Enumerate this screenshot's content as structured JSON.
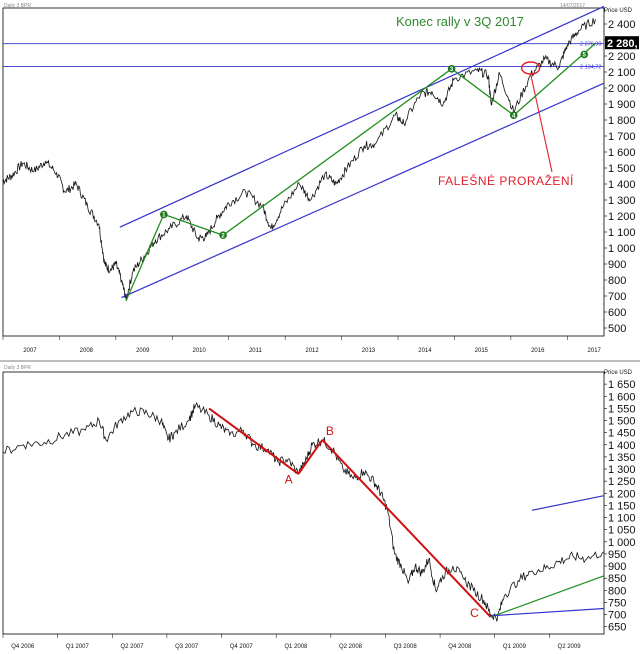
{
  "colors": {
    "price": "#111111",
    "channel": "#3333cc",
    "wave": "#1f8f1f",
    "wave_marker": "#1e7a1e",
    "abc": "#d01010",
    "annot_green": "#2e8b2e",
    "annot_red": "#e0202a",
    "axis_box": "#000000"
  },
  "top_header": {
    "left": "Daily 3 BPR",
    "right": "14/07/2017"
  },
  "bottom_header": {
    "left": "Daily 3 BPR",
    "right": ""
  },
  "chart_data": [
    {
      "type": "line",
      "axis_unit": "Price USD",
      "last_price": "2 280,",
      "ylim": [
        450,
        2500
      ],
      "y_ticks": [
        500,
        600,
        700,
        800,
        900,
        1000,
        1100,
        1200,
        1300,
        1400,
        1500,
        1600,
        1700,
        1800,
        1900,
        2000,
        2100,
        2200,
        2300,
        2400
      ],
      "y_tick_labels": [
        "500",
        "600",
        "700",
        "800",
        "900",
        "1 000",
        "1 100",
        "1 200",
        "1 300",
        "1 400",
        "1 500",
        "1 600",
        "1 700",
        "1 800",
        "1 900",
        "2 000",
        "2 100",
        "2 200",
        "2 300",
        "2 400"
      ],
      "x_years": [
        "2007",
        "2008",
        "2009",
        "2010",
        "2011",
        "2012",
        "2013",
        "2014",
        "2015",
        "2016",
        "2017"
      ],
      "annotations": {
        "title": "Konec rally v 3Q 2017",
        "false_break": "FALEŠNÉ PRORAŽENÍ",
        "hline_upper": "2 276,90",
        "hline_lower": "2 134,72",
        "waves": [
          "1",
          "2",
          "3",
          "4",
          "5"
        ]
      },
      "hlines": [
        2276.9,
        2134.72
      ],
      "series": [
        {
          "values": [
            [
              2007.0,
              1420
            ],
            [
              2007.15,
              1450
            ],
            [
              2007.35,
              1530
            ],
            [
              2007.55,
              1480
            ],
            [
              2007.75,
              1540
            ],
            [
              2007.95,
              1470
            ],
            [
              2008.1,
              1350
            ],
            [
              2008.3,
              1400
            ],
            [
              2008.5,
              1260
            ],
            [
              2008.7,
              1150
            ],
            [
              2008.8,
              900
            ],
            [
              2008.9,
              860
            ],
            [
              2009.0,
              900
            ],
            [
              2009.1,
              800
            ],
            [
              2009.18,
              680
            ],
            [
              2009.3,
              850
            ],
            [
              2009.5,
              950
            ],
            [
              2009.7,
              1050
            ],
            [
              2009.95,
              1120
            ],
            [
              2010.25,
              1200
            ],
            [
              2010.45,
              1060
            ],
            [
              2010.6,
              1070
            ],
            [
              2010.8,
              1190
            ],
            [
              2011.0,
              1280
            ],
            [
              2011.3,
              1350
            ],
            [
              2011.6,
              1260
            ],
            [
              2011.75,
              1120
            ],
            [
              2011.95,
              1250
            ],
            [
              2012.25,
              1400
            ],
            [
              2012.45,
              1300
            ],
            [
              2012.7,
              1460
            ],
            [
              2012.9,
              1400
            ],
            [
              2013.1,
              1500
            ],
            [
              2013.4,
              1640
            ],
            [
              2013.6,
              1650
            ],
            [
              2013.95,
              1830
            ],
            [
              2014.1,
              1780
            ],
            [
              2014.4,
              1960
            ],
            [
              2014.6,
              1980
            ],
            [
              2014.8,
              1900
            ],
            [
              2015.0,
              2060
            ],
            [
              2015.4,
              2110
            ],
            [
              2015.6,
              2080
            ],
            [
              2015.65,
              1900
            ],
            [
              2015.8,
              2090
            ],
            [
              2016.05,
              1850
            ],
            [
              2016.35,
              2080
            ],
            [
              2016.6,
              2180
            ],
            [
              2016.85,
              2130
            ],
            [
              2017.0,
              2270
            ],
            [
              2017.2,
              2360
            ],
            [
              2017.5,
              2430
            ]
          ]
        }
      ],
      "channel_lines": [
        {
          "from": [
            2009.07,
            1130
          ],
          "to": [
            2017.65,
            2510
          ]
        },
        {
          "from": [
            2009.1,
            690
          ],
          "to": [
            2017.65,
            2030
          ]
        }
      ],
      "wave_lines": [
        {
          "from": [
            2009.18,
            670
          ],
          "to": [
            2009.85,
            1210
          ]
        },
        {
          "from": [
            2009.85,
            1210
          ],
          "to": [
            2010.9,
            1080
          ]
        },
        {
          "from": [
            2010.9,
            1080
          ],
          "to": [
            2014.95,
            2120
          ]
        },
        {
          "from": [
            2014.95,
            2120
          ],
          "to": [
            2016.05,
            1830
          ]
        },
        {
          "from": [
            2016.05,
            1830
          ],
          "to": [
            2017.5,
            2280
          ]
        }
      ],
      "wave_points": [
        [
          2009.85,
          1210
        ],
        [
          2010.9,
          1080
        ],
        [
          2014.95,
          2120
        ],
        [
          2016.05,
          1830
        ],
        [
          2017.3,
          2210
        ]
      ]
    },
    {
      "type": "line",
      "axis_unit": "Price USD",
      "ylim": [
        620,
        1700
      ],
      "y_ticks": [
        650,
        700,
        750,
        800,
        850,
        900,
        950,
        1000,
        1050,
        1100,
        1150,
        1200,
        1250,
        1300,
        1350,
        1400,
        1450,
        1500,
        1550,
        1600,
        1650
      ],
      "y_tick_labels": [
        "650",
        "700",
        "750",
        "800",
        "850",
        "900",
        "950",
        "1 000",
        "1 050",
        "1 100",
        "1 150",
        "1 200",
        "1 250",
        "1 300",
        "1 350",
        "1 400",
        "1 450",
        "1 500",
        "1 550",
        "1 600",
        "1 650"
      ],
      "x_quarters": [
        "Q4 2006",
        "Q1 2007",
        "Q2 2007",
        "Q3 2007",
        "Q4 2007",
        "Q1 2008",
        "Q2 2008",
        "Q3 2008",
        "Q4 2008",
        "Q1 2009",
        "Q2 2009"
      ],
      "annotations": {
        "abc": [
          "A",
          "B",
          "C"
        ]
      },
      "series": [
        {
          "values": [
            [
              0.0,
              1370
            ],
            [
              0.06,
              1400
            ],
            [
              0.12,
              1410
            ],
            [
              0.18,
              1440
            ],
            [
              0.24,
              1460
            ],
            [
              0.28,
              1500
            ],
            [
              0.3,
              1420
            ],
            [
              0.34,
              1500
            ],
            [
              0.38,
              1540
            ],
            [
              0.42,
              1530
            ],
            [
              0.46,
              1500
            ],
            [
              0.48,
              1420
            ],
            [
              0.5,
              1450
            ],
            [
              0.54,
              1500
            ],
            [
              0.56,
              1560
            ],
            [
              0.6,
              1520
            ],
            [
              0.63,
              1480
            ],
            [
              0.66,
              1440
            ],
            [
              0.7,
              1460
            ],
            [
              0.73,
              1400
            ],
            [
              0.77,
              1380
            ],
            [
              0.8,
              1330
            ],
            [
              0.83,
              1340
            ],
            [
              0.86,
              1280
            ],
            [
              0.88,
              1330
            ],
            [
              0.9,
              1400
            ],
            [
              0.93,
              1420
            ],
            [
              0.96,
              1380
            ],
            [
              0.99,
              1300
            ],
            [
              1.02,
              1260
            ],
            [
              1.05,
              1290
            ],
            [
              1.08,
              1250
            ],
            [
              1.1,
              1200
            ],
            [
              1.12,
              1130
            ],
            [
              1.14,
              950
            ],
            [
              1.16,
              900
            ],
            [
              1.18,
              830
            ],
            [
              1.2,
              900
            ],
            [
              1.22,
              870
            ],
            [
              1.24,
              930
            ],
            [
              1.26,
              800
            ],
            [
              1.28,
              860
            ],
            [
              1.31,
              900
            ],
            [
              1.34,
              850
            ],
            [
              1.37,
              800
            ],
            [
              1.4,
              760
            ],
            [
              1.42,
              700
            ],
            [
              1.44,
              690
            ],
            [
              1.46,
              780
            ],
            [
              1.5,
              840
            ],
            [
              1.54,
              880
            ],
            [
              1.58,
              890
            ],
            [
              1.62,
              920
            ],
            [
              1.66,
              940
            ],
            [
              1.7,
              930
            ],
            [
              1.75,
              960
            ]
          ]
        }
      ],
      "abc_lines": [
        {
          "from": [
            0.6,
            1550
          ],
          "to": [
            0.86,
            1280
          ]
        },
        {
          "from": [
            0.86,
            1280
          ],
          "to": [
            0.93,
            1420
          ]
        },
        {
          "from": [
            0.93,
            1420
          ],
          "to": [
            1.42,
            690
          ]
        }
      ],
      "green_line": {
        "from": [
          1.42,
          690
        ],
        "to": [
          1.75,
          860
        ]
      },
      "blue_lines": [
        {
          "from": [
            1.42,
            695
          ],
          "to": [
            1.75,
            725
          ]
        },
        {
          "from": [
            1.54,
            1130
          ],
          "to": [
            1.75,
            1190
          ]
        }
      ],
      "xlim": [
        0.0,
        1.75
      ]
    }
  ]
}
